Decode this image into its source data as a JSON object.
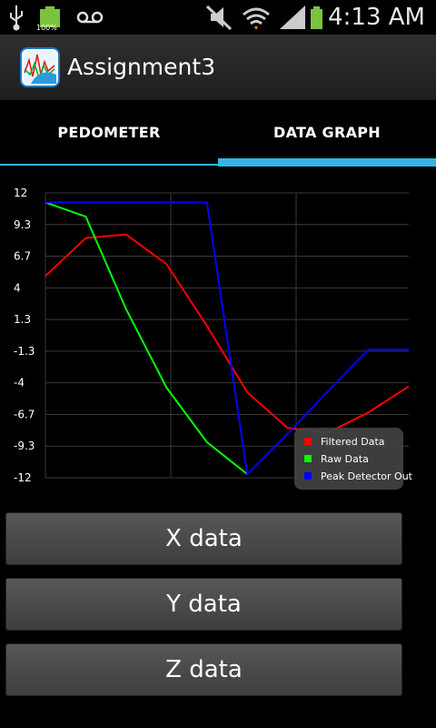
{
  "status_bar": {
    "time": "4:13 AM",
    "battery_percent_label": "100%",
    "icons": [
      "usb-icon",
      "battery-full-icon",
      "voicemail-icon",
      "mute-icon",
      "wifi-icon",
      "signal-icon",
      "battery-charging-icon"
    ],
    "colors": {
      "battery": "#7bc23f"
    }
  },
  "action_bar": {
    "title": "Assignment3",
    "icon": "app-launcher-icon"
  },
  "tabs": [
    {
      "label": "PEDOMETER",
      "selected": false
    },
    {
      "label": "DATA GRAPH",
      "selected": true
    }
  ],
  "colors": {
    "accent": "#33b5e5",
    "filtered": "#ff0000",
    "raw": "#00ff00",
    "peak": "#0000ff"
  },
  "chart_data": {
    "type": "line",
    "grid": true,
    "legend_position": "bottom-right",
    "x": [
      0,
      1,
      2,
      3,
      4,
      5,
      6,
      7,
      8,
      9
    ],
    "ylim": [
      -12,
      12
    ],
    "y_ticks": [
      "12",
      "9.3",
      "6.7",
      "4",
      "1.3",
      "-1.3",
      "-4",
      "-6.7",
      "-9.3",
      "-12"
    ],
    "series": [
      {
        "name": "Filtered Data",
        "color": "#ff0000",
        "values": [
          5.0,
          8.2,
          8.5,
          6.0,
          0.8,
          -4.8,
          -7.8,
          -8.2,
          -6.5,
          -4.3
        ]
      },
      {
        "name": "Raw Data",
        "color": "#00ff00",
        "values": [
          11.2,
          10.0,
          2.2,
          -4.4,
          -9.0,
          -11.7,
          null,
          null,
          null,
          null
        ]
      },
      {
        "name": "Peak Detector Out",
        "color": "#0000ff",
        "values": [
          11.2,
          11.2,
          11.2,
          11.2,
          11.2,
          -11.7,
          -8.3,
          -4.7,
          -1.2,
          -1.2
        ]
      }
    ]
  },
  "buttons": {
    "x_data": "X data",
    "y_data": "Y data",
    "z_data": "Z data"
  }
}
